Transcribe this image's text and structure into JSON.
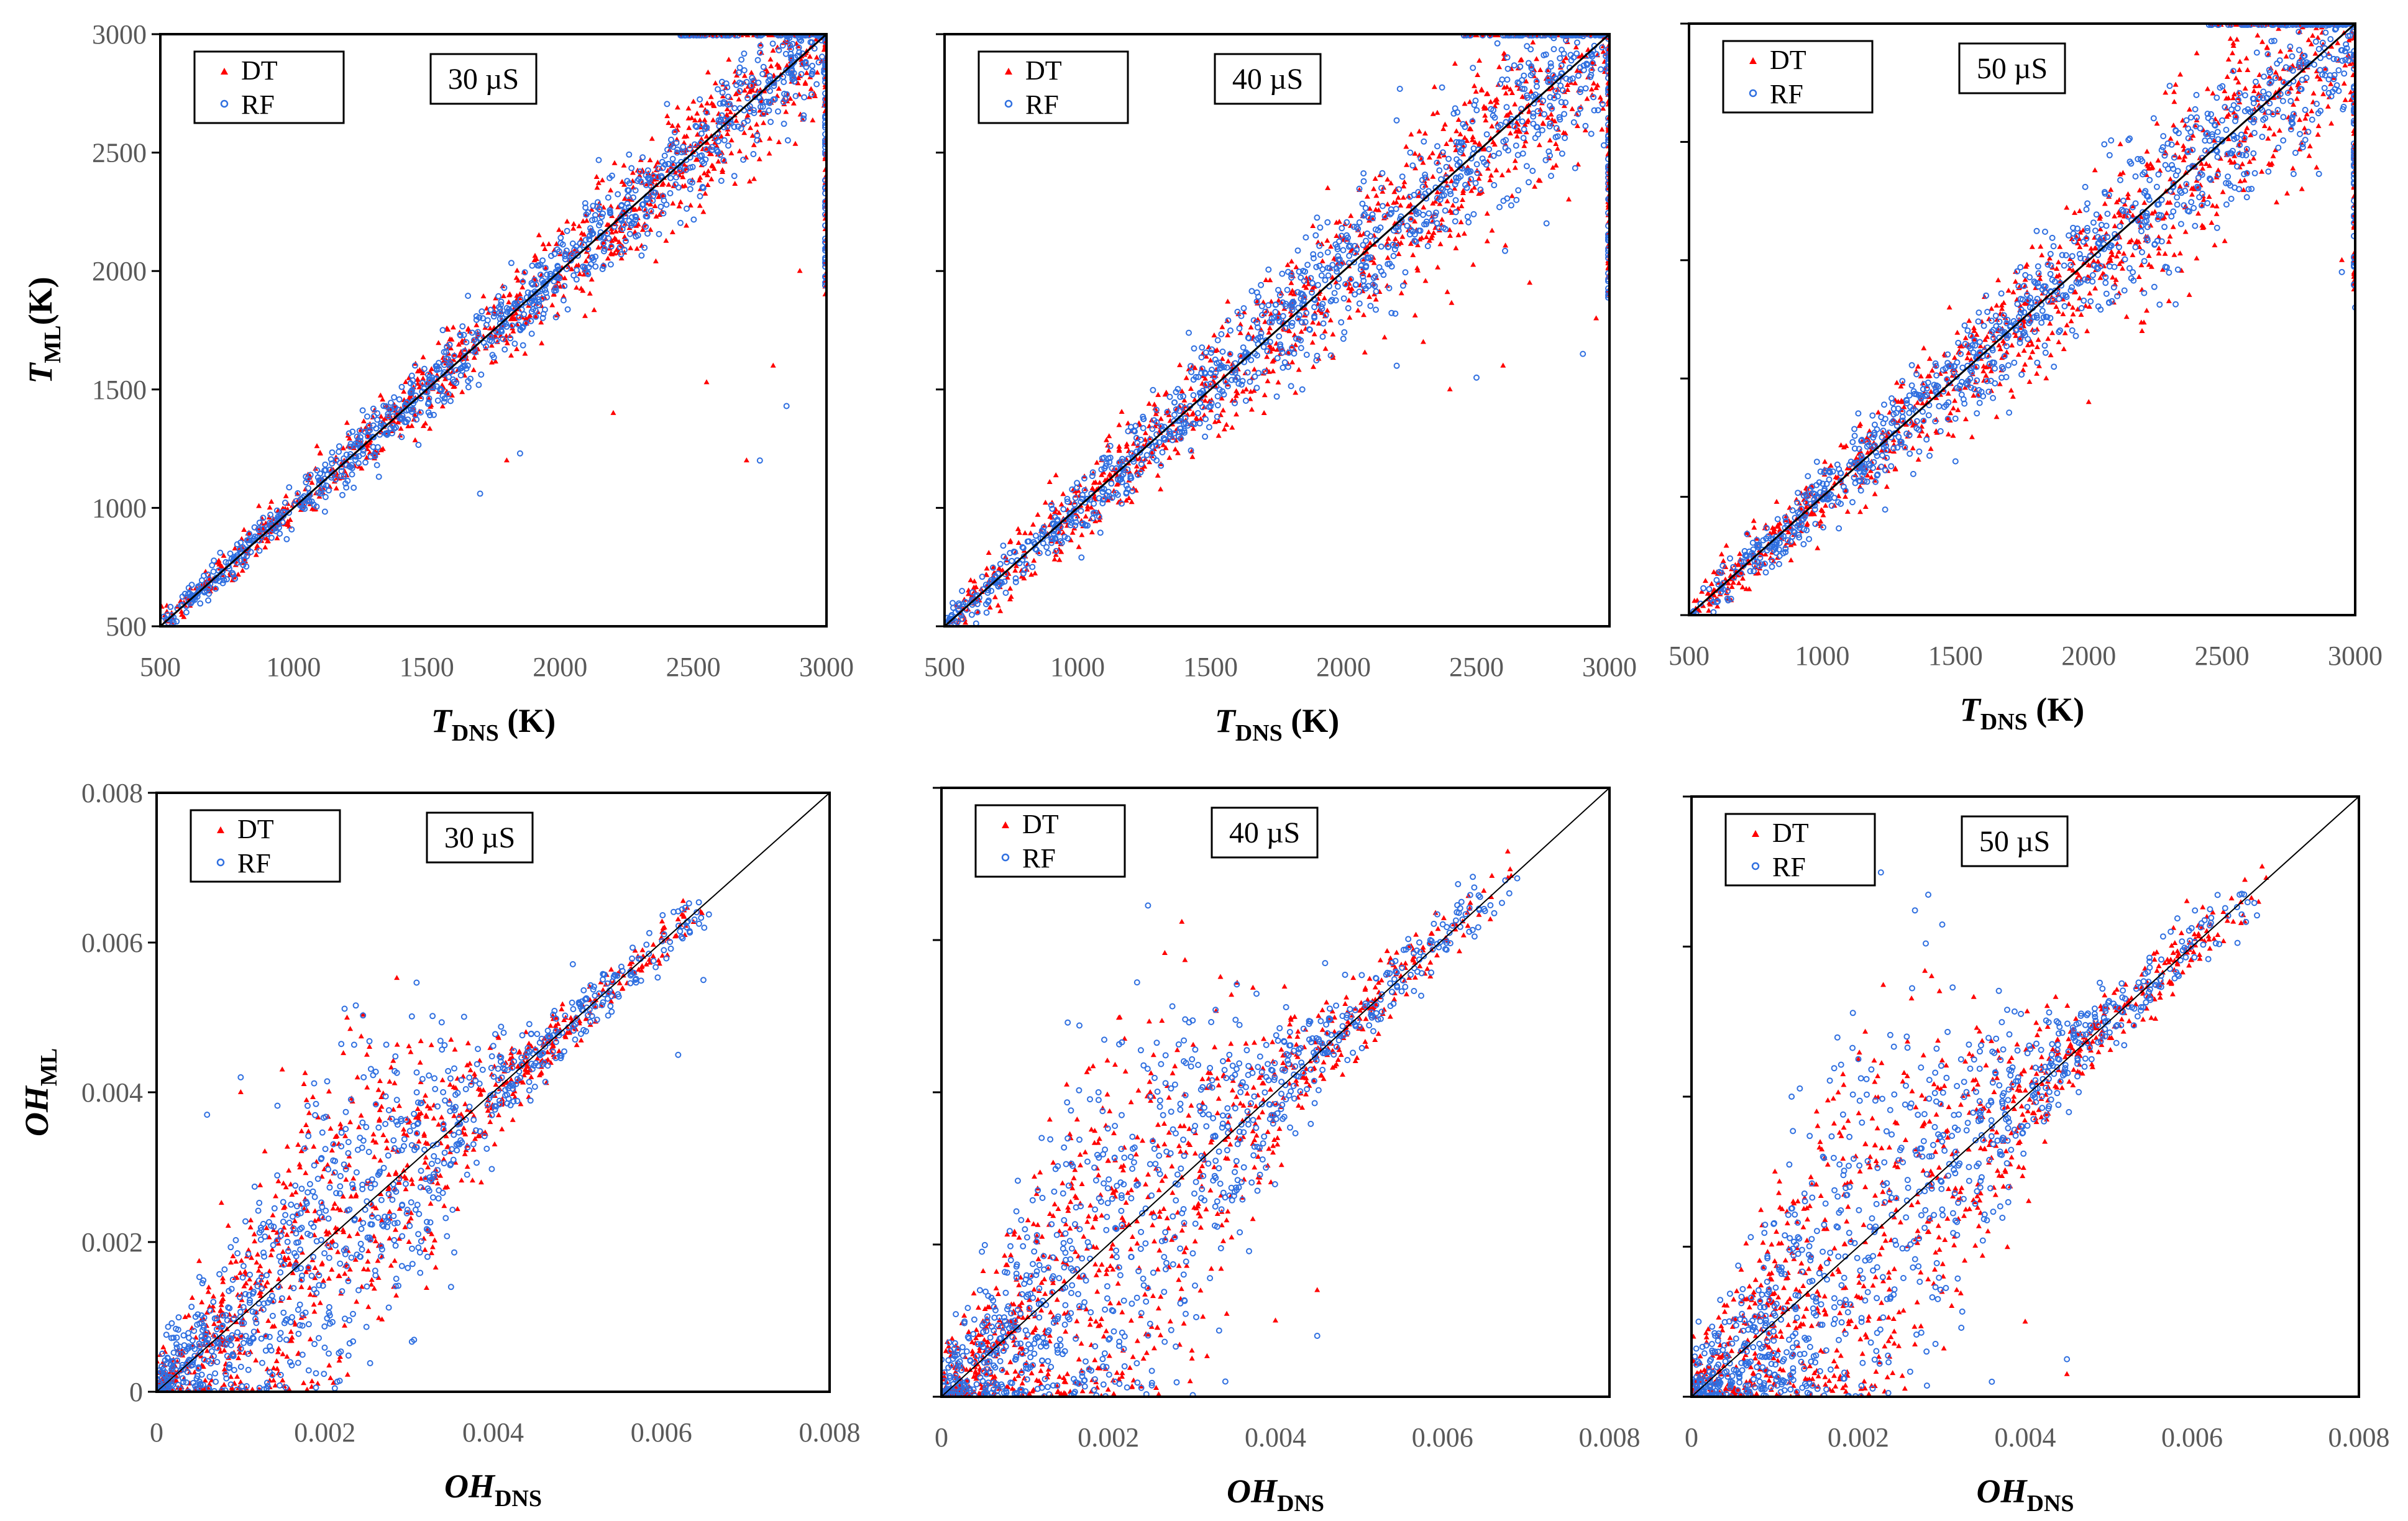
{
  "legend": {
    "dt_label": "DT",
    "rf_label": "RF",
    "dt_color": "#ff0000",
    "rf_color": "#2f6fe0"
  },
  "chart_data": [
    {
      "type": "scatter",
      "title": "30 µS",
      "variable": "T",
      "xlabel": {
        "main": "T",
        "sub": "DNS",
        "unit": " (K)"
      },
      "ylabel": {
        "main": "T",
        "sub": "ML",
        "unit": "(K)"
      },
      "xlim": [
        500,
        3000
      ],
      "ylim": [
        500,
        3000
      ],
      "xticks": [
        500,
        1000,
        1500,
        2000,
        2500,
        3000
      ],
      "xtick_labels": [
        "500",
        "1000",
        "1500",
        "2000",
        "2500",
        "3000"
      ],
      "yticks": [
        500,
        1000,
        1500,
        2000,
        2500,
        3000
      ],
      "ytick_labels": [
        "500",
        "1000",
        "1500",
        "2000",
        "2500",
        "3000"
      ],
      "diagonal": [
        [
          500,
          500
        ],
        [
          3000,
          3000
        ]
      ],
      "series": [
        {
          "name": "DT",
          "marker": "triangle",
          "spread": 0.05,
          "outliers": [
            [
              2700,
              1200
            ],
            [
              2800,
              1600
            ],
            [
              2550,
              1530
            ],
            [
              1800,
              1200
            ],
            [
              2200,
              1400
            ],
            [
              2900,
              2000
            ]
          ]
        },
        {
          "name": "RF",
          "marker": "circle",
          "spread": 0.045,
          "outliers": [
            [
              2750,
              1200
            ],
            [
              2850,
              1430
            ],
            [
              1700,
              1060
            ],
            [
              1850,
              1230
            ],
            [
              3000,
              2100
            ]
          ]
        }
      ]
    },
    {
      "type": "scatter",
      "title": "40 µS",
      "variable": "T",
      "xlabel": {
        "main": "T",
        "sub": "DNS",
        "unit": " (K)"
      },
      "ylabel": {
        "main": "",
        "sub": "",
        "unit": ""
      },
      "xlim": [
        500,
        3000
      ],
      "ylim": [
        500,
        3000
      ],
      "xticks": [
        500,
        1000,
        1500,
        2000,
        2500,
        3000
      ],
      "xtick_labels": [
        "500",
        "1000",
        "1500",
        "2000",
        "2500",
        "3000"
      ],
      "yticks": [
        500,
        1000,
        1500,
        2000,
        2500,
        3000
      ],
      "ytick_labels": [],
      "diagonal": [
        [
          500,
          500
        ],
        [
          3000,
          3000
        ]
      ],
      "series": [
        {
          "name": "DT",
          "marker": "triangle",
          "spread": 0.08,
          "outliers": [
            [
              2400,
              1500
            ],
            [
              2600,
              1600
            ],
            [
              2950,
              1800
            ],
            [
              2700,
              1950
            ],
            [
              2300,
              1700
            ]
          ]
        },
        {
          "name": "RF",
          "marker": "circle",
          "spread": 0.07,
          "outliers": [
            [
              2900,
              1650
            ],
            [
              2500,
              1550
            ],
            [
              2200,
              1600
            ],
            [
              3000,
              2300
            ]
          ]
        }
      ]
    },
    {
      "type": "scatter",
      "title": "50 µS",
      "variable": "T",
      "xlabel": {
        "main": "T",
        "sub": "DNS",
        "unit": " (K)"
      },
      "ylabel": {
        "main": "",
        "sub": "",
        "unit": ""
      },
      "xlim": [
        500,
        3000
      ],
      "ylim": [
        500,
        3000
      ],
      "xticks": [
        500,
        1000,
        1500,
        2000,
        2500,
        3000
      ],
      "xtick_labels": [
        "500",
        "1000",
        "1500",
        "2000",
        "2500",
        "3000"
      ],
      "yticks": [
        500,
        1000,
        1500,
        2000,
        2500,
        3000
      ],
      "ytick_labels": [],
      "diagonal": [
        [
          500,
          500
        ],
        [
          3000,
          3000
        ]
      ],
      "series": [
        {
          "name": "DT",
          "marker": "triangle",
          "spread": 0.08,
          "outliers": [
            [
              2000,
              1400
            ],
            [
              2950,
              2000
            ],
            [
              2800,
              2300
            ],
            [
              2200,
              1700
            ]
          ]
        },
        {
          "name": "RF",
          "marker": "circle",
          "spread": 0.07,
          "outliers": [
            [
              2950,
              1950
            ],
            [
              2600,
              2300
            ],
            [
              1500,
              1150
            ],
            [
              3000,
              1800
            ]
          ]
        }
      ]
    },
    {
      "type": "scatter",
      "title": "30 µS",
      "variable": "OH",
      "xlabel": {
        "main": "OH",
        "sub": "DNS",
        "unit": ""
      },
      "ylabel": {
        "main": "OH",
        "sub": "ML",
        "unit": ""
      },
      "xlim": [
        0,
        0.008
      ],
      "ylim": [
        0,
        0.008
      ],
      "xticks": [
        0,
        0.002,
        0.004,
        0.006,
        0.008
      ],
      "xtick_labels": [
        "0",
        "0.002",
        "0.004",
        "0.006",
        "0.008"
      ],
      "yticks": [
        0,
        0.002,
        0.004,
        0.006,
        0.008
      ],
      "ytick_labels": [
        "0",
        "0.002",
        "0.004",
        "0.006",
        "0.008"
      ],
      "diagonal": [
        [
          0,
          0
        ],
        [
          0.008,
          0.008
        ]
      ],
      "data_max": 0.0067,
      "series": [
        {
          "name": "DT",
          "marker": "triangle",
          "spread": 0.0006,
          "outliers": [
            [
              0.0035,
              0.0047
            ],
            [
              0.001,
              0.004
            ],
            [
              0.0025,
              0.0045
            ],
            [
              0.003,
              0.002
            ],
            [
              0.0015,
              0.0005
            ]
          ]
        },
        {
          "name": "RF",
          "marker": "circle",
          "spread": 0.0006,
          "outliers": [
            [
              0.001,
              0.0042
            ],
            [
              0.0006,
              0.0037
            ],
            [
              0.0062,
              0.0045
            ],
            [
              0.0065,
              0.0055
            ],
            [
              0.0035,
              0.0014
            ]
          ]
        }
      ]
    },
    {
      "type": "scatter",
      "title": "40 µS",
      "variable": "OH",
      "xlabel": {
        "main": "OH",
        "sub": "DNS",
        "unit": ""
      },
      "ylabel": {
        "main": "",
        "sub": "",
        "unit": ""
      },
      "xlim": [
        0,
        0.008
      ],
      "ylim": [
        0,
        0.008
      ],
      "xticks": [
        0,
        0.002,
        0.004,
        0.006,
        0.008
      ],
      "xtick_labels": [
        "0",
        "0.002",
        "0.004",
        "0.006",
        "0.008"
      ],
      "yticks": [
        0,
        0.002,
        0.004,
        0.006,
        0.008
      ],
      "ytick_labels": [],
      "diagonal": [
        [
          0,
          0
        ],
        [
          0.008,
          0.008
        ]
      ],
      "data_max": 0.0069,
      "series": [
        {
          "name": "DT",
          "marker": "triangle",
          "spread": 0.0008,
          "outliers": [
            [
              0.0015,
              0.0041
            ],
            [
              0.0025,
              0.004
            ],
            [
              0.004,
              0.001
            ],
            [
              0.0045,
              0.0014
            ],
            [
              0.003,
              0.0005
            ]
          ]
        },
        {
          "name": "RF",
          "marker": "circle",
          "spread": 0.0008,
          "outliers": [
            [
              0.0012,
              0.0034
            ],
            [
              0.0045,
              0.0008
            ],
            [
              0.0034,
              0.0002
            ],
            [
              0.001,
              0.0022
            ]
          ]
        }
      ]
    },
    {
      "type": "scatter",
      "title": "50 µS",
      "variable": "OH",
      "xlabel": {
        "main": "OH",
        "sub": "DNS",
        "unit": ""
      },
      "ylabel": {
        "main": "",
        "sub": "",
        "unit": ""
      },
      "xlim": [
        0,
        0.008
      ],
      "ylim": [
        0,
        0.008
      ],
      "xticks": [
        0,
        0.002,
        0.004,
        0.006,
        0.008
      ],
      "xtick_labels": [
        "0",
        "0.002",
        "0.004",
        "0.006",
        "0.008"
      ],
      "yticks": [
        0,
        0.002,
        0.004,
        0.006,
        0.008
      ],
      "ytick_labels": [],
      "diagonal": [
        [
          0,
          0
        ],
        [
          0.008,
          0.008
        ]
      ],
      "data_max": 0.007,
      "series": [
        {
          "name": "DT",
          "marker": "triangle",
          "spread": 0.0008,
          "outliers": [
            [
              0.002,
              0.0045
            ],
            [
              0.0015,
              0.0038
            ],
            [
              0.004,
              0.001
            ],
            [
              0.0045,
              0.0003
            ],
            [
              0.001,
              0.003
            ]
          ]
        },
        {
          "name": "RF",
          "marker": "circle",
          "spread": 0.0008,
          "outliers": [
            [
              0.002,
              0.0045
            ],
            [
              0.0012,
              0.004
            ],
            [
              0.0045,
              0.0005
            ],
            [
              0.0036,
              0.0002
            ]
          ]
        }
      ]
    }
  ]
}
